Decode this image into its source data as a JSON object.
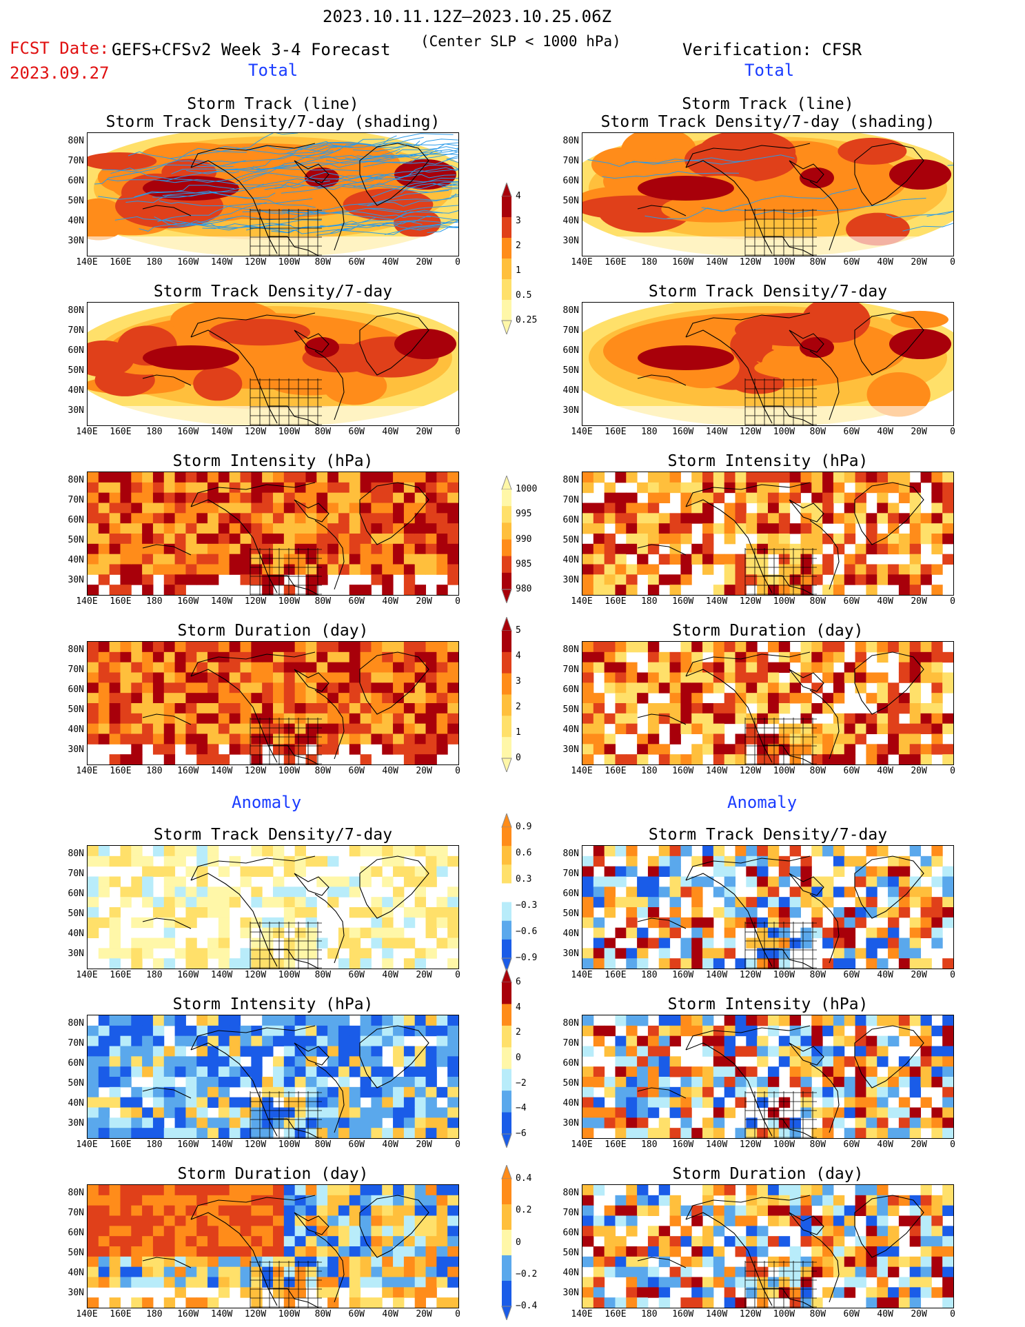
{
  "header": {
    "date_range": "2023.10.11.12Z–2023.10.25.06Z",
    "fcst_label": "FCST Date:",
    "fcst_date": "2023.09.27",
    "model": "GEFS+CFSv2 Week 3-4 Forecast",
    "criterion": "(Center SLP < 1000 hPa)",
    "verification": "Verification: CFSR"
  },
  "sections": {
    "total_left": "Total",
    "total_right": "Total",
    "anomaly_left": "Anomaly",
    "anomaly_right": "Anomaly"
  },
  "panel_titles": {
    "track_line": "Storm Track (line)",
    "track_density_shading": "Storm Track Density/7-day (shading)",
    "density": "Storm Track Density/7-day",
    "intensity": "Storm Intensity (hPa)",
    "duration": "Storm Duration (day)"
  },
  "axes": {
    "lat_labels": [
      "80N",
      "70N",
      "60N",
      "50N",
      "40N",
      "30N"
    ],
    "lon_labels": [
      "140E",
      "160E",
      "180",
      "160W",
      "140W",
      "120W",
      "100W",
      "80W",
      "60W",
      "40W",
      "20W",
      "0"
    ]
  },
  "colorbars": {
    "density_total": [
      "4",
      "3",
      "2",
      "1",
      "0.5",
      "0.25"
    ],
    "intensity_total": [
      "1000",
      "995",
      "990",
      "985",
      "980"
    ],
    "duration_total": [
      "5",
      "4",
      "3",
      "2",
      "1",
      "0"
    ],
    "density_anom": [
      "0.9",
      "0.6",
      "0.3",
      "−0.3",
      "−0.6",
      "−0.9"
    ],
    "intensity_anom": [
      "6",
      "4",
      "2",
      "0",
      "−2",
      "−4",
      "−6"
    ],
    "duration_anom": [
      "0.4",
      "0.2",
      "0",
      "−0.2",
      "−0.4"
    ]
  },
  "colors": {
    "warm_scale": [
      "#fff7a8",
      "#ffe06a",
      "#ffbf3c",
      "#ff8c1a",
      "#e0401a",
      "#a8000a"
    ],
    "cool_scale": [
      "#b8ecfa",
      "#5aa8ec",
      "#1a5ce8"
    ],
    "track_line": "#2a9ae8",
    "title_blue": "#1a3cff",
    "fcst_red": "#e01010"
  }
}
